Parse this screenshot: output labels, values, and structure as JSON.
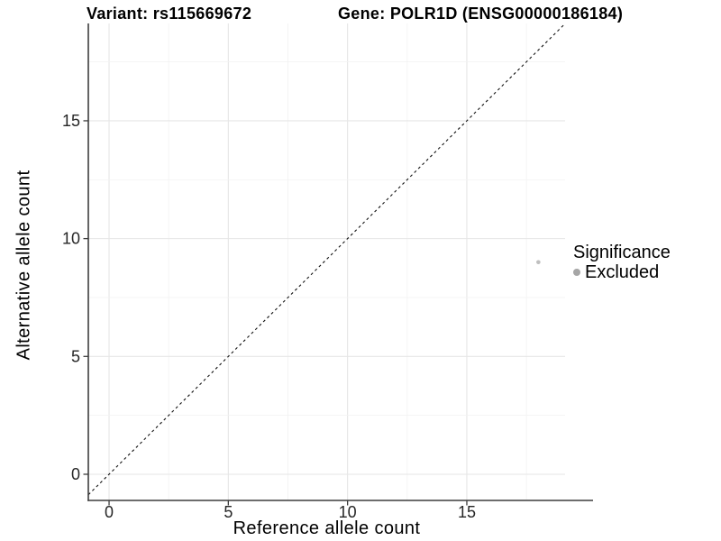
{
  "chart_data": {
    "type": "scatter",
    "title_left": "Variant: rs115669672",
    "title_right": "Gene: POLR1D (ENSG00000186184)",
    "xlabel": "Reference allele count",
    "ylabel": "Alternative allele count",
    "xlim": [
      -0.87,
      19.12
    ],
    "ylim": [
      -1.11,
      19.13
    ],
    "x_ticks": [
      0,
      5,
      10,
      15
    ],
    "y_ticks": [
      0,
      5,
      10,
      15
    ],
    "minor_grid_step": 2.5,
    "grid": true,
    "legend_position": "right",
    "points": [
      {
        "x": 18,
        "y": 9,
        "series": "Excluded",
        "color": "#bfbfbf",
        "radius": 2.3
      }
    ],
    "identity_line": {
      "equation": "y = x",
      "style": "dashed",
      "color": "#111111"
    },
    "legend": {
      "title": "Significance",
      "items": [
        {
          "label": "Excluded",
          "color": "#a6a6a6"
        }
      ]
    },
    "colors": {
      "grid_major": "#e6e6e6",
      "grid_minor": "#f2f2f2",
      "axis": "#3d3d3d",
      "tick_text": "#262626"
    }
  }
}
